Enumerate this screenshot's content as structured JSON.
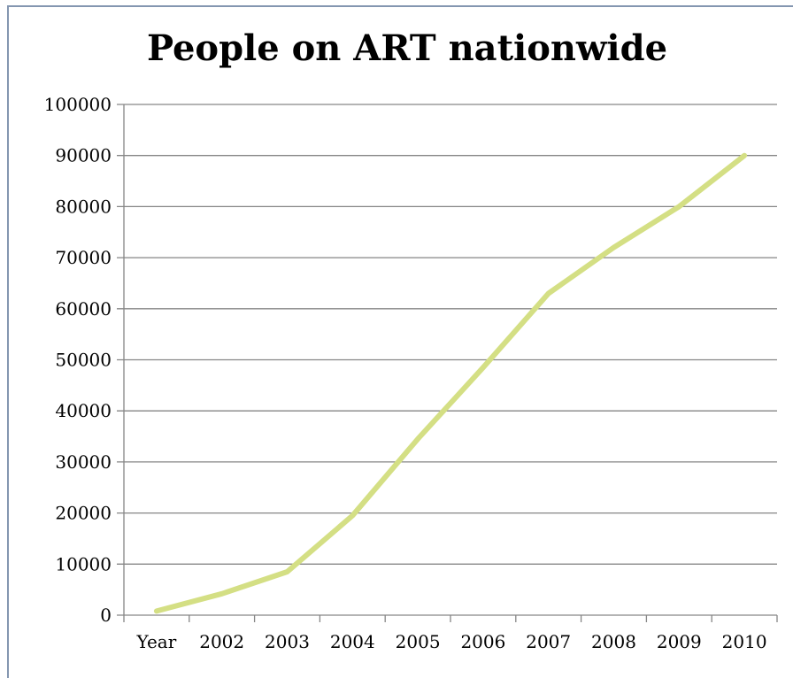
{
  "chart_data": {
    "type": "line",
    "title": "People on ART nationwide",
    "xlabel": "",
    "ylabel": "",
    "categories": [
      "Year",
      "2002",
      "2003",
      "2004",
      "2005",
      "2006",
      "2007",
      "2008",
      "2009",
      "2010"
    ],
    "series": [
      {
        "values": [
          800,
          4200,
          8500,
          19500,
          34500,
          48500,
          63000,
          72000,
          80000,
          90000
        ],
        "color": "#d4df84"
      }
    ],
    "ylim": [
      0,
      100000
    ],
    "yticks": [
      "0",
      "10000",
      "20000",
      "30000",
      "40000",
      "50000",
      "60000",
      "70000",
      "80000",
      "90000",
      "100000"
    ],
    "grid": true,
    "legend": "none"
  }
}
